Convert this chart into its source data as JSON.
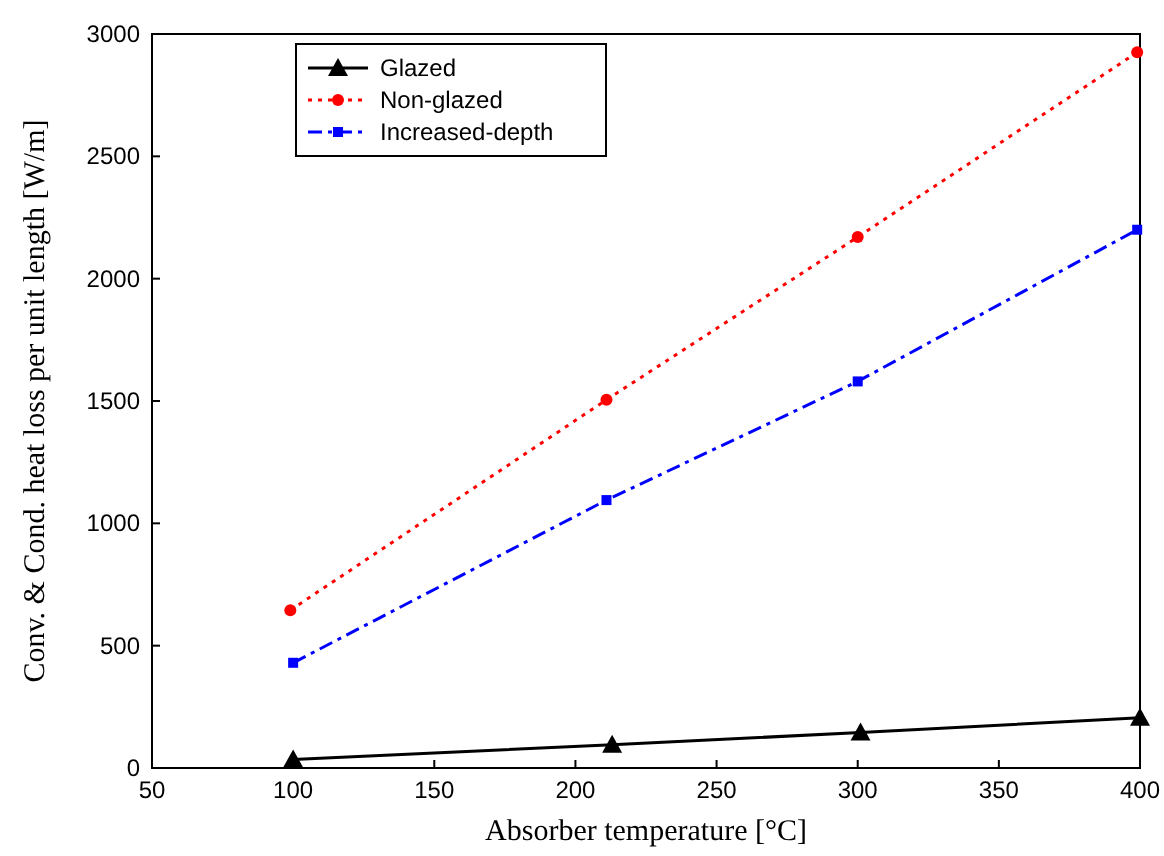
{
  "chart_data": {
    "type": "line",
    "xlabel": "Absorber temperature [°C]",
    "ylabel": "Conv. & Cond. heat loss per unit length [W/m]",
    "xlim": [
      50,
      400
    ],
    "xticks": [
      50,
      100,
      150,
      200,
      250,
      300,
      350,
      400
    ],
    "ylim": [
      0,
      3000
    ],
    "yticks": [
      0,
      500,
      1000,
      1500,
      2000,
      2500,
      3000
    ],
    "legend": "top left",
    "grid": false,
    "series": [
      {
        "name": "Glazed",
        "color": "#000000",
        "marker": "triangle",
        "line_style": "solid",
        "x": [
          100,
          213,
          301,
          400
        ],
        "values": [
          35,
          95,
          145,
          205
        ]
      },
      {
        "name": "Non-glazed",
        "color": "#ff0000",
        "marker": "circle",
        "line_style": "dotted",
        "x": [
          99,
          211,
          300,
          399
        ],
        "values": [
          645,
          1505,
          2170,
          2925
        ]
      },
      {
        "name": "Increased-depth",
        "color": "#0000ff",
        "marker": "square",
        "line_style": "dashdot",
        "x": [
          100,
          211,
          300,
          399
        ],
        "values": [
          430,
          1095,
          1580,
          2200
        ]
      }
    ]
  }
}
